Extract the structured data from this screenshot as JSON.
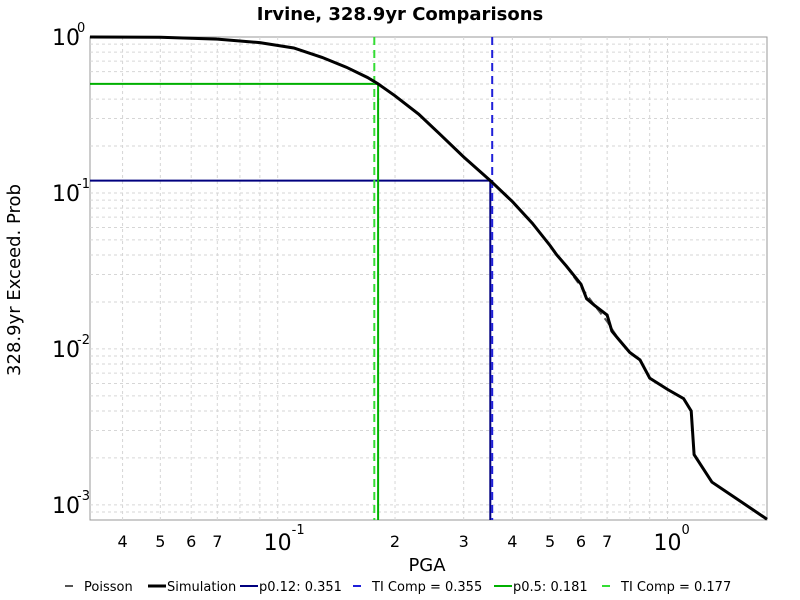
{
  "chart_data": {
    "type": "line",
    "title": "Irvine, 328.9yr Comparisons",
    "xlabel": "PGA",
    "ylabel": "328.9yr Exceed. Prob",
    "x_scale": "log",
    "y_scale": "log",
    "xlim": [
      0.033,
      1.8
    ],
    "ylim": [
      0.0008,
      1.0
    ],
    "grid": true,
    "x_major_ticks": [
      {
        "value": 0.1,
        "base": "10",
        "exp": "-1"
      },
      {
        "value": 1.0,
        "base": "10",
        "exp": "0"
      }
    ],
    "x_minor_labels": [
      {
        "value": 0.04,
        "label": "4"
      },
      {
        "value": 0.05,
        "label": "5"
      },
      {
        "value": 0.06,
        "label": "6"
      },
      {
        "value": 0.07,
        "label": "7"
      },
      {
        "value": 0.2,
        "label": "2"
      },
      {
        "value": 0.3,
        "label": "3"
      },
      {
        "value": 0.4,
        "label": "4"
      },
      {
        "value": 0.5,
        "label": "5"
      },
      {
        "value": 0.6,
        "label": "6"
      },
      {
        "value": 0.7,
        "label": "7"
      }
    ],
    "y_major_ticks": [
      {
        "value": 1.0,
        "base": "10",
        "exp": "0"
      },
      {
        "value": 0.1,
        "base": "10",
        "exp": "-1"
      },
      {
        "value": 0.01,
        "base": "10",
        "exp": "-2"
      },
      {
        "value": 0.001,
        "base": "10",
        "exp": "-3"
      }
    ],
    "series": [
      {
        "name": "Poisson",
        "style": "dashed",
        "color": "#555555",
        "x": [
          0.033,
          0.05,
          0.07,
          0.09,
          0.11,
          0.13,
          0.15,
          0.17,
          0.181,
          0.2,
          0.23,
          0.26,
          0.3,
          0.351,
          0.4,
          0.45,
          0.5,
          0.55,
          0.6,
          0.65,
          0.7,
          0.75,
          0.8,
          0.85
        ],
        "y": [
          1.0,
          0.995,
          0.97,
          0.92,
          0.85,
          0.74,
          0.64,
          0.55,
          0.5,
          0.42,
          0.32,
          0.24,
          0.17,
          0.12,
          0.088,
          0.064,
          0.046,
          0.034,
          0.025,
          0.019,
          0.015,
          0.0115,
          0.0095,
          0.0085
        ]
      },
      {
        "name": "Simulation",
        "style": "solid",
        "color": "#000000",
        "x": [
          0.033,
          0.05,
          0.07,
          0.09,
          0.11,
          0.13,
          0.15,
          0.17,
          0.181,
          0.2,
          0.23,
          0.26,
          0.3,
          0.351,
          0.4,
          0.45,
          0.5,
          0.52,
          0.55,
          0.6,
          0.62,
          0.65,
          0.7,
          0.72,
          0.75,
          0.8,
          0.85,
          0.9,
          1.0,
          1.1,
          1.15,
          1.17,
          1.3,
          1.5,
          1.8
        ],
        "y": [
          1.0,
          0.995,
          0.97,
          0.92,
          0.85,
          0.74,
          0.64,
          0.55,
          0.5,
          0.42,
          0.32,
          0.24,
          0.17,
          0.12,
          0.088,
          0.064,
          0.046,
          0.04,
          0.034,
          0.026,
          0.021,
          0.019,
          0.0165,
          0.013,
          0.0115,
          0.0095,
          0.0085,
          0.0065,
          0.0055,
          0.0048,
          0.004,
          0.0021,
          0.0014,
          0.0011,
          0.00081
        ]
      },
      {
        "name": "p0.12: 0.351",
        "style": "solid",
        "color": "#00007f",
        "x": [
          0.033,
          0.351,
          0.351
        ],
        "y": [
          0.12,
          0.12,
          0.0008
        ]
      },
      {
        "name": "TI Comp = 0.355",
        "style": "dashed",
        "color": "#1f1fd9",
        "x": [
          0.355,
          0.355
        ],
        "y": [
          1.0,
          0.0008
        ]
      },
      {
        "name": "p0.5: 0.181",
        "style": "solid",
        "color": "#00b000",
        "x": [
          0.033,
          0.181,
          0.181
        ],
        "y": [
          0.5,
          0.5,
          0.0008
        ]
      },
      {
        "name": "TI Comp = 0.177",
        "style": "dashed",
        "color": "#33dd33",
        "x": [
          0.177,
          0.177
        ],
        "y": [
          1.0,
          0.0008
        ]
      }
    ]
  }
}
